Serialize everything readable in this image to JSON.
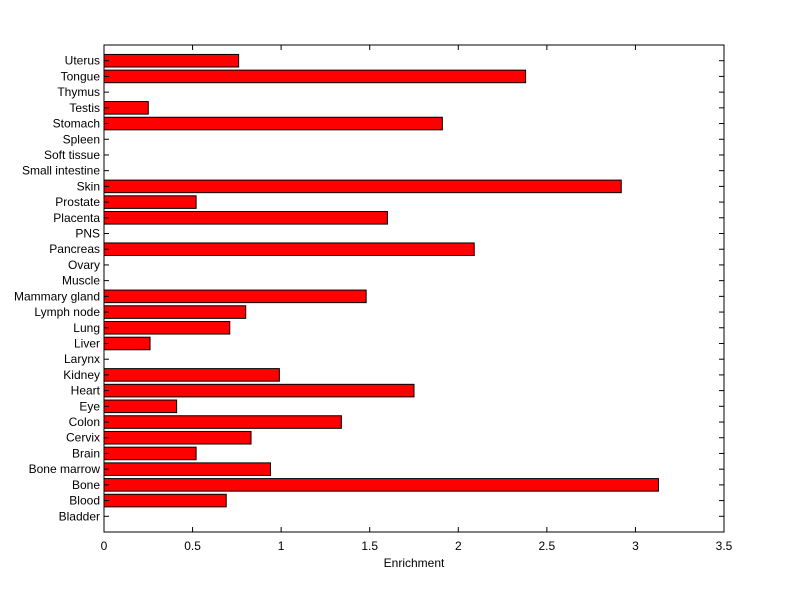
{
  "chart_data": {
    "type": "bar",
    "orientation": "horizontal",
    "title": "",
    "xlabel": "Enrichment",
    "ylabel": "",
    "xlim": [
      0,
      3.5
    ],
    "xticks": [
      "0",
      "0.5",
      "1",
      "1.5",
      "2",
      "2.5",
      "3",
      "3.5"
    ],
    "grid": false,
    "legend": "none",
    "bar_color": "#ff0000",
    "categories": [
      "Bladder",
      "Blood",
      "Bone",
      "Bone marrow",
      "Brain",
      "Cervix",
      "Colon",
      "Eye",
      "Heart",
      "Kidney",
      "Larynx",
      "Liver",
      "Lung",
      "Lymph node",
      "Mammary gland",
      "Muscle",
      "Ovary",
      "Pancreas",
      "PNS",
      "Placenta",
      "Prostate",
      "Skin",
      "Small intestine",
      "Soft tissue",
      "Spleen",
      "Stomach",
      "Testis",
      "Thymus",
      "Tongue",
      "Uterus"
    ],
    "values": [
      0,
      0.69,
      3.13,
      0.94,
      0.52,
      0.83,
      1.34,
      0.41,
      1.75,
      0.99,
      0,
      0.26,
      0.71,
      0.8,
      1.48,
      0,
      0,
      2.09,
      0,
      1.6,
      0.52,
      2.92,
      0,
      0,
      0,
      1.91,
      0.25,
      0,
      2.38,
      0.76
    ]
  }
}
